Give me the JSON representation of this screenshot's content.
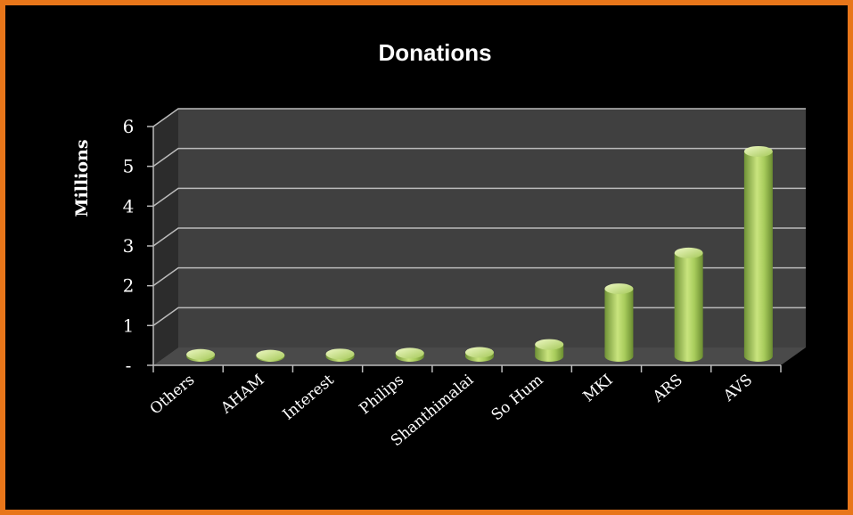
{
  "chart_data": {
    "type": "bar",
    "title": "Donations",
    "xlabel": "",
    "ylabel": "Millions",
    "categories": [
      "Others",
      "AHAM",
      "Interest",
      "Philips",
      "Shanthimalai",
      "So Hum",
      "MKI",
      "ARS",
      "AVS"
    ],
    "values": [
      0.05,
      0.03,
      0.06,
      0.08,
      0.1,
      0.3,
      1.7,
      2.6,
      5.15
    ],
    "ylim": [
      0,
      6
    ],
    "yticks": [
      "-",
      "1",
      "2",
      "3",
      "4",
      "5",
      "6"
    ],
    "grid": true,
    "legend": "none",
    "style": "3d-cylinder"
  },
  "colors": {
    "border": "#e8761a",
    "background": "#000000",
    "plot_wall": "#404040",
    "bar": "#a8cc5c",
    "bar_light": "#e8f5b8",
    "bar_dark": "#7a9e3c",
    "gridline": "#bbbbbb",
    "text": "#ffffff"
  }
}
